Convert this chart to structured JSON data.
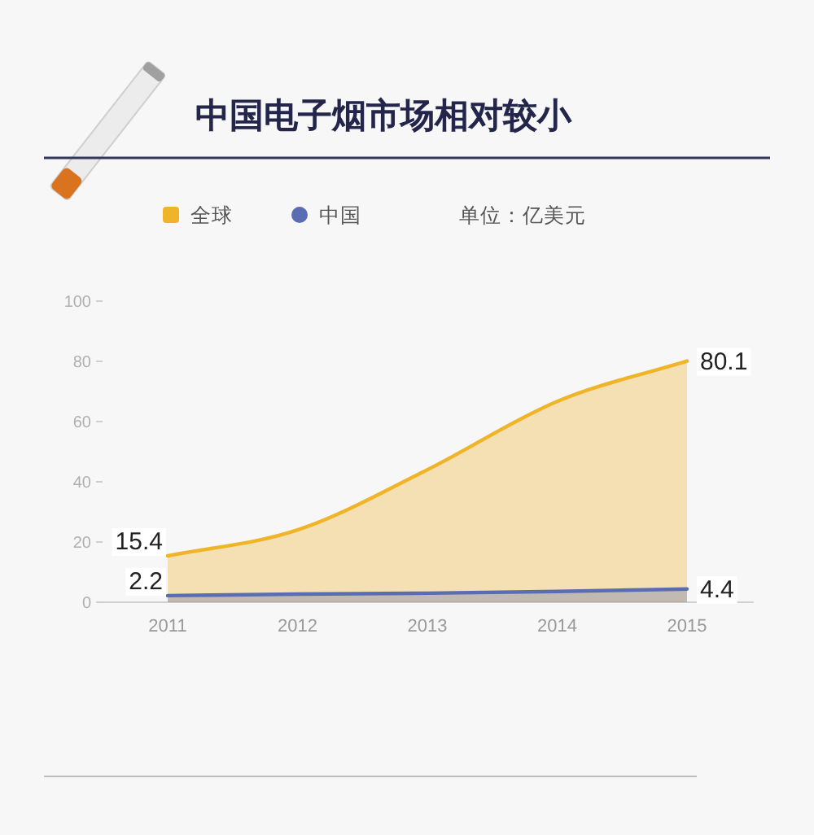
{
  "chart_data": {
    "type": "area",
    "title": "中国电子烟市场相对较小",
    "annotations": [
      "单位：亿美元"
    ],
    "categories": [
      "2011",
      "2012",
      "2013",
      "2014",
      "2015"
    ],
    "series": [
      {
        "name": "全球",
        "color": "#f0b429",
        "values": [
          15.4,
          24,
          44,
          66.7,
          80.1
        ],
        "value_labels": [
          "15.4",
          null,
          null,
          null,
          "80.1"
        ]
      },
      {
        "name": "中国",
        "color": "#5a6db3",
        "values": [
          2.2,
          2.7,
          3.0,
          3.6,
          4.4
        ],
        "value_labels": [
          "2.2",
          null,
          null,
          null,
          "4.4"
        ]
      }
    ],
    "ylim": [
      0,
      100
    ],
    "yticks": [
      0,
      20,
      40,
      60,
      80,
      100
    ],
    "legend": "top"
  }
}
